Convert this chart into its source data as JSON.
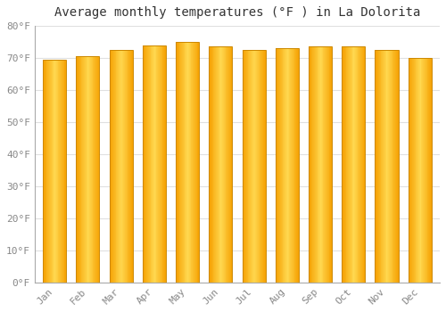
{
  "title": "Average monthly temperatures (°F ) in La Dolorita",
  "months": [
    "Jan",
    "Feb",
    "Mar",
    "Apr",
    "May",
    "Jun",
    "Jul",
    "Aug",
    "Sep",
    "Oct",
    "Nov",
    "Dec"
  ],
  "values": [
    69.5,
    70.5,
    72.5,
    74.0,
    75.0,
    73.5,
    72.5,
    73.0,
    73.5,
    73.5,
    72.5,
    70.0
  ],
  "ylim": [
    0,
    80
  ],
  "yticks": [
    0,
    10,
    20,
    30,
    40,
    50,
    60,
    70,
    80
  ],
  "ytick_labels": [
    "0°F",
    "10°F",
    "20°F",
    "30°F",
    "40°F",
    "50°F",
    "60°F",
    "70°F",
    "80°F"
  ],
  "bar_color_center": "#FFD060",
  "bar_color_edge": "#F5A000",
  "bar_border_color": "#CC8800",
  "background_color": "#FFFFFF",
  "grid_color": "#E0E0E0",
  "title_fontsize": 10,
  "tick_fontsize": 8,
  "tick_color": "#888888",
  "bar_width": 0.7
}
